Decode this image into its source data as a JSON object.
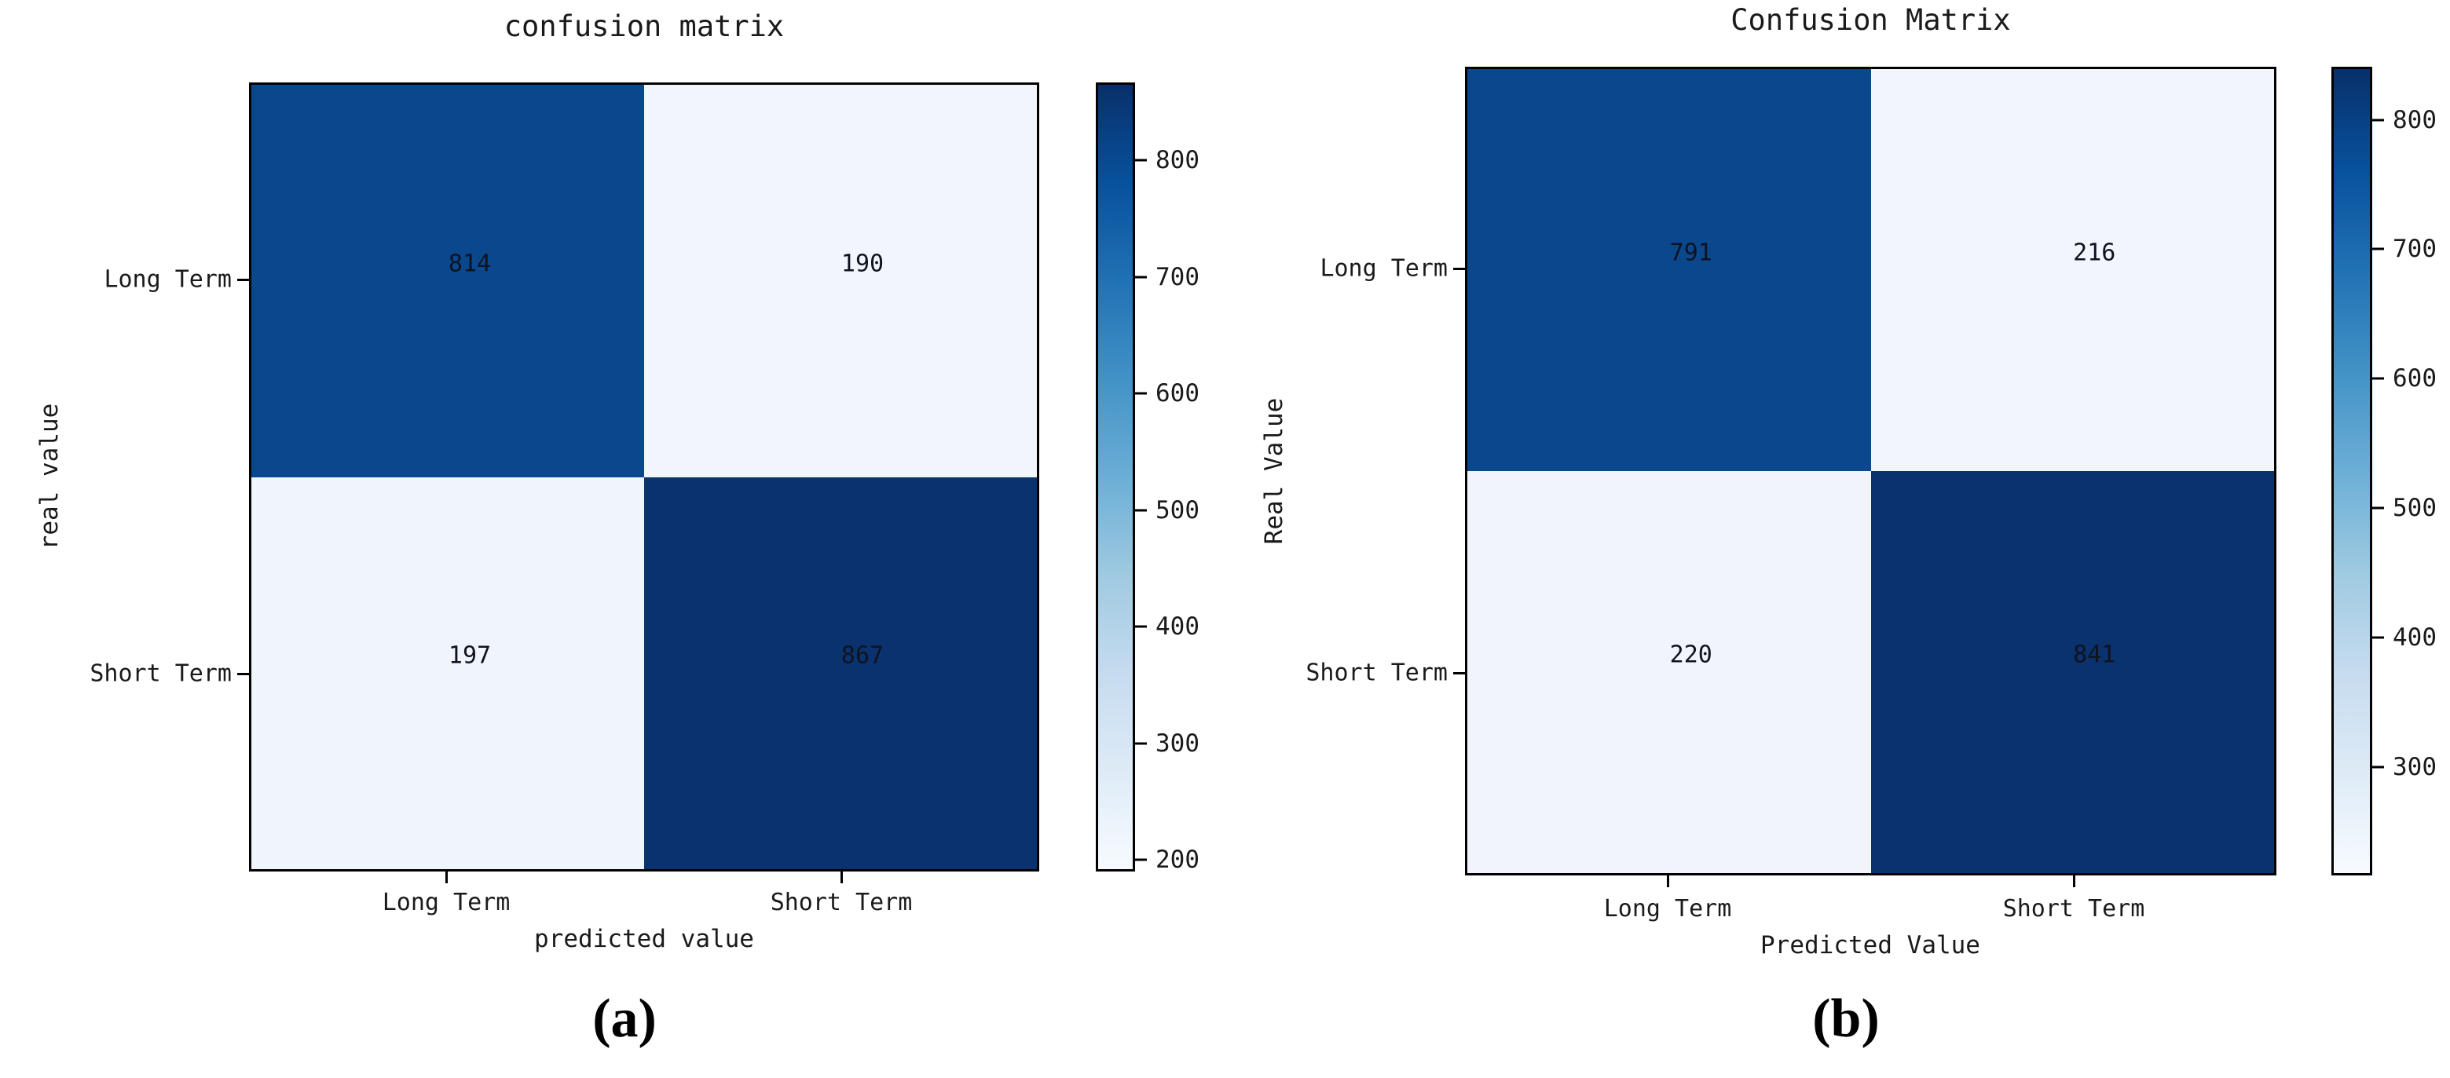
{
  "colormap_stops": [
    "#08306b",
    "#08519c",
    "#2171b5",
    "#4292c6",
    "#6baed6",
    "#9ecae1",
    "#c6dbef",
    "#deebf7",
    "#f7fbff"
  ],
  "text_color": "#1a1a1a",
  "chart_data": [
    {
      "type": "heatmap",
      "title": "confusion matrix",
      "xlabel": "predicted value",
      "ylabel": "real value",
      "x_categories": [
        "Long Term",
        "Short Term"
      ],
      "y_categories": [
        "Long Term",
        "Short Term"
      ],
      "values": [
        [
          814,
          190
        ],
        [
          197,
          867
        ]
      ],
      "cell_colors": [
        [
          "#0a478d",
          "#f2f6fc"
        ],
        [
          "#f0f5fb",
          "#09326e"
        ]
      ],
      "colormap": "Blues",
      "vmin": 190,
      "vmax": 867,
      "colorbar_ticks": [
        800,
        700,
        600,
        500,
        400,
        300,
        200
      ],
      "legend_position": "right-colorbar",
      "grid": false,
      "caption": "(a)"
    },
    {
      "type": "heatmap",
      "title": "Confusion Matrix",
      "xlabel": "Predicted Value",
      "ylabel": "Real Value",
      "x_categories": [
        "Long Term",
        "Short Term"
      ],
      "y_categories": [
        "Long Term",
        "Short Term"
      ],
      "values": [
        [
          791,
          216
        ],
        [
          220,
          841
        ]
      ],
      "cell_colors": [
        [
          "#0a478d",
          "#f2f6fc"
        ],
        [
          "#f1f5fb",
          "#09326e"
        ]
      ],
      "colormap": "Blues",
      "vmin": 216,
      "vmax": 841,
      "colorbar_ticks": [
        800,
        700,
        600,
        500,
        400,
        300
      ],
      "legend_position": "right-colorbar",
      "grid": false,
      "caption": "(b)"
    }
  ]
}
